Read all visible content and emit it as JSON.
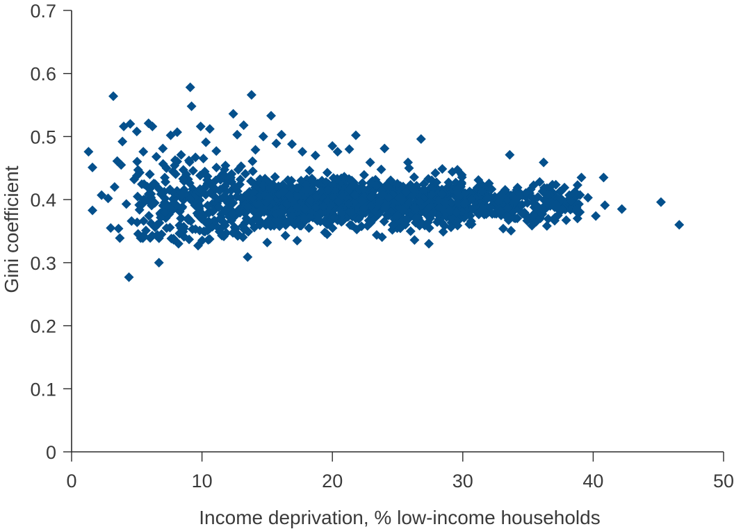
{
  "chart_data": {
    "type": "scatter",
    "marker": "diamond",
    "color": "#04508c",
    "xlabel": "Income deprivation, % low-income households",
    "ylabel": "Gini coefficient",
    "xlim": [
      0,
      50
    ],
    "ylim": [
      0,
      0.7
    ],
    "xticks": [
      0,
      10,
      20,
      30,
      40,
      50
    ],
    "yticks": [
      0,
      0.1,
      0.2,
      0.3,
      0.4,
      0.5,
      0.6,
      0.7
    ],
    "xtick_labels": [
      "0",
      "10",
      "20",
      "30",
      "40",
      "50"
    ],
    "ytick_labels": [
      "0",
      "0.1",
      "0.2",
      "0.3",
      "0.4",
      "0.5",
      "0.6",
      "0.7"
    ],
    "grid": false,
    "series": [
      {
        "points": [
          [
            1.3,
            0.476
          ],
          [
            1.6,
            0.451
          ],
          [
            1.6,
            0.383
          ],
          [
            2.3,
            0.407
          ],
          [
            2.8,
            0.402
          ],
          [
            3.0,
            0.355
          ],
          [
            3.2,
            0.564
          ],
          [
            3.3,
            0.42
          ],
          [
            3.5,
            0.461
          ],
          [
            3.6,
            0.354
          ],
          [
            3.7,
            0.339
          ],
          [
            3.8,
            0.455
          ],
          [
            3.9,
            0.492
          ],
          [
            4.0,
            0.516
          ],
          [
            4.2,
            0.393
          ],
          [
            4.4,
            0.277
          ],
          [
            4.5,
            0.52
          ],
          [
            4.6,
            0.366
          ],
          [
            4.8,
            0.432
          ],
          [
            5.0,
            0.508
          ],
          [
            5.1,
            0.447
          ],
          [
            5.3,
            0.339
          ],
          [
            5.5,
            0.476
          ],
          [
            5.7,
            0.351
          ],
          [
            5.9,
            0.521
          ],
          [
            6.1,
            0.409
          ],
          [
            6.2,
            0.516
          ],
          [
            6.4,
            0.356
          ],
          [
            6.5,
            0.468
          ],
          [
            6.7,
            0.3
          ],
          [
            6.9,
            0.345
          ],
          [
            7.0,
            0.481
          ],
          [
            7.2,
            0.428
          ],
          [
            7.4,
            0.39
          ],
          [
            7.6,
            0.502
          ],
          [
            7.8,
            0.444
          ],
          [
            8.1,
            0.507
          ],
          [
            8.2,
            0.33
          ],
          [
            8.4,
            0.471
          ],
          [
            8.6,
            0.357
          ],
          [
            8.8,
            0.44
          ],
          [
            9.1,
            0.578
          ],
          [
            9.2,
            0.548
          ],
          [
            9.3,
            0.417
          ],
          [
            9.5,
            0.467
          ],
          [
            9.7,
            0.327
          ],
          [
            9.9,
            0.516
          ],
          [
            10.1,
            0.376
          ],
          [
            10.3,
            0.491
          ],
          [
            10.6,
            0.512
          ],
          [
            10.8,
            0.357
          ],
          [
            11.1,
            0.477
          ],
          [
            11.4,
            0.416
          ],
          [
            11.8,
            0.454
          ],
          [
            12.1,
            0.375
          ],
          [
            12.4,
            0.536
          ],
          [
            12.7,
            0.503
          ],
          [
            13.0,
            0.453
          ],
          [
            13.2,
            0.518
          ],
          [
            13.5,
            0.309
          ],
          [
            13.8,
            0.566
          ],
          [
            14.1,
            0.479
          ],
          [
            14.4,
            0.42
          ],
          [
            14.7,
            0.5
          ],
          [
            15.0,
            0.332
          ],
          [
            15.3,
            0.533
          ],
          [
            15.7,
            0.489
          ],
          [
            16.1,
            0.503
          ],
          [
            16.4,
            0.343
          ],
          [
            16.9,
            0.488
          ],
          [
            17.3,
            0.335
          ],
          [
            17.7,
            0.476
          ],
          [
            18.2,
            0.355
          ],
          [
            18.7,
            0.47
          ],
          [
            19.2,
            0.43
          ],
          [
            19.6,
            0.345
          ],
          [
            20.0,
            0.485
          ],
          [
            20.4,
            0.476
          ],
          [
            20.8,
            0.367
          ],
          [
            21.3,
            0.48
          ],
          [
            21.8,
            0.502
          ],
          [
            22.3,
            0.426
          ],
          [
            22.9,
            0.459
          ],
          [
            23.4,
            0.344
          ],
          [
            24.0,
            0.481
          ],
          [
            24.6,
            0.352
          ],
          [
            25.2,
            0.41
          ],
          [
            25.8,
            0.459
          ],
          [
            26.3,
            0.336
          ],
          [
            26.8,
            0.496
          ],
          [
            27.4,
            0.33
          ],
          [
            27.9,
            0.442
          ],
          [
            28.5,
            0.349
          ],
          [
            29.2,
            0.444
          ],
          [
            29.9,
            0.427
          ],
          [
            30.5,
            0.361
          ],
          [
            31.2,
            0.431
          ],
          [
            31.8,
            0.377
          ],
          [
            32.5,
            0.396
          ],
          [
            33.1,
            0.354
          ],
          [
            33.6,
            0.471
          ],
          [
            34.2,
            0.419
          ],
          [
            34.8,
            0.405
          ],
          [
            35.3,
            0.37
          ],
          [
            35.9,
            0.428
          ],
          [
            36.2,
            0.459
          ],
          [
            36.7,
            0.415
          ],
          [
            37.3,
            0.375
          ],
          [
            37.8,
            0.419
          ],
          [
            38.3,
            0.392
          ],
          [
            38.8,
            0.423
          ],
          [
            39.1,
            0.435
          ],
          [
            39.6,
            0.403
          ],
          [
            40.2,
            0.374
          ],
          [
            40.8,
            0.435
          ],
          [
            40.9,
            0.391
          ],
          [
            42.2,
            0.385
          ],
          [
            45.2,
            0.396
          ],
          [
            46.6,
            0.36
          ],
          [
            6.0,
            0.44
          ],
          [
            7.5,
            0.415
          ],
          [
            8.3,
            0.381
          ],
          [
            9.0,
            0.462
          ],
          [
            9.6,
            0.398
          ],
          [
            10.4,
            0.431
          ],
          [
            11.0,
            0.388
          ],
          [
            11.6,
            0.441
          ],
          [
            12.2,
            0.403
          ],
          [
            12.9,
            0.424
          ],
          [
            13.4,
            0.387
          ],
          [
            13.9,
            0.445
          ],
          [
            14.3,
            0.393
          ],
          [
            14.8,
            0.418
          ],
          [
            15.2,
            0.378
          ],
          [
            15.6,
            0.436
          ],
          [
            16.0,
            0.392
          ],
          [
            16.6,
            0.414
          ],
          [
            17.1,
            0.381
          ],
          [
            17.6,
            0.43
          ],
          [
            18.1,
            0.398
          ],
          [
            18.6,
            0.411
          ],
          [
            19.1,
            0.385
          ],
          [
            19.7,
            0.425
          ],
          [
            20.2,
            0.396
          ],
          [
            20.7,
            0.412
          ],
          [
            21.1,
            0.379
          ],
          [
            21.6,
            0.428
          ],
          [
            22.1,
            0.39
          ],
          [
            22.6,
            0.409
          ],
          [
            23.1,
            0.382
          ],
          [
            23.6,
            0.423
          ],
          [
            24.2,
            0.395
          ],
          [
            24.8,
            0.408
          ],
          [
            25.4,
            0.384
          ],
          [
            26.0,
            0.419
          ],
          [
            26.6,
            0.394
          ],
          [
            27.2,
            0.405
          ],
          [
            27.8,
            0.387
          ],
          [
            28.4,
            0.416
          ],
          [
            29.0,
            0.397
          ],
          [
            29.6,
            0.404
          ],
          [
            30.2,
            0.389
          ],
          [
            30.9,
            0.412
          ],
          [
            31.5,
            0.398
          ],
          [
            32.2,
            0.403
          ],
          [
            32.8,
            0.391
          ],
          [
            33.4,
            0.41
          ],
          [
            34.0,
            0.396
          ]
        ]
      }
    ]
  }
}
